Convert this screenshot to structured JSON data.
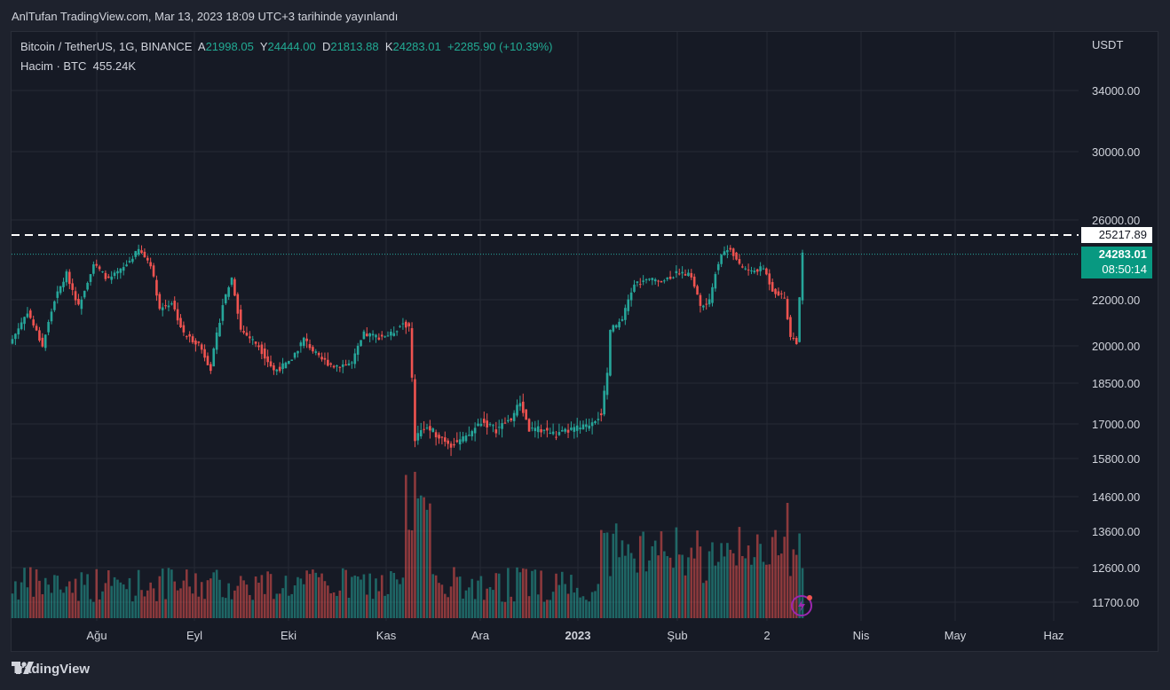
{
  "published": "AnlTufan TradingView.com, Mar 13, 2023 18:09 UTC+3 tarihinde yayınlandı",
  "legend": {
    "symbol": "Bitcoin / TetherUS, 1G, BINANCE",
    "open_label": "A",
    "open": "21998.05",
    "high_label": "Y",
    "high": "24444.00",
    "low_label": "D",
    "low": "21813.88",
    "close_label": "K",
    "close": "24283.01",
    "change": "+2285.90 (+10.39%)",
    "volume_label": "Hacim · BTC",
    "volume": "455.24K"
  },
  "currency": "USDT",
  "price_tags": {
    "level": "25217.89",
    "last": "24283.01",
    "countdown": "08:50:14"
  },
  "logo_text": "TradingView",
  "colors": {
    "up": "#26a69a",
    "down": "#ef5350",
    "bg": "#161a25",
    "grid": "#262a35",
    "level_line": "#ffffff"
  },
  "chart_data": {
    "type": "candlestick",
    "y_ticks": [
      "34000.00",
      "30000.00",
      "26000.00",
      "22000.00",
      "20000.00",
      "18500.00",
      "17000.00",
      "15800.00",
      "14600.00",
      "13600.00",
      "12600.00",
      "11700.00"
    ],
    "x_ticks": [
      "Ağu",
      "Eyl",
      "Eki",
      "Kas",
      "Ara",
      "2023",
      "Şub",
      "2",
      "Nis",
      "May",
      "Haz"
    ],
    "horizontal_level": 25217.89,
    "last_price": 24283.01,
    "close_path": [
      {
        "x": 0,
        "y": 20300
      },
      {
        "x": 5,
        "y": 21500
      },
      {
        "x": 10,
        "y": 20000
      },
      {
        "x": 14,
        "y": 22000
      },
      {
        "x": 18,
        "y": 23300
      },
      {
        "x": 22,
        "y": 21700
      },
      {
        "x": 27,
        "y": 23800
      },
      {
        "x": 32,
        "y": 23000
      },
      {
        "x": 37,
        "y": 23600
      },
      {
        "x": 42,
        "y": 24500
      },
      {
        "x": 46,
        "y": 23800
      },
      {
        "x": 49,
        "y": 21600
      },
      {
        "x": 53,
        "y": 21900
      },
      {
        "x": 57,
        "y": 20500
      },
      {
        "x": 62,
        "y": 20100
      },
      {
        "x": 66,
        "y": 19100
      },
      {
        "x": 70,
        "y": 21800
      },
      {
        "x": 73,
        "y": 23100
      },
      {
        "x": 76,
        "y": 20700
      },
      {
        "x": 82,
        "y": 20000
      },
      {
        "x": 87,
        "y": 19000
      },
      {
        "x": 92,
        "y": 19300
      },
      {
        "x": 97,
        "y": 20300
      },
      {
        "x": 102,
        "y": 19500
      },
      {
        "x": 107,
        "y": 19200
      },
      {
        "x": 113,
        "y": 19300
      },
      {
        "x": 117,
        "y": 20500
      },
      {
        "x": 122,
        "y": 20400
      },
      {
        "x": 126,
        "y": 20500
      },
      {
        "x": 130,
        "y": 21000
      },
      {
        "x": 132,
        "y": 20800
      },
      {
        "x": 133,
        "y": 18700
      },
      {
        "x": 134,
        "y": 16500
      },
      {
        "x": 137,
        "y": 16900
      },
      {
        "x": 142,
        "y": 16600
      },
      {
        "x": 146,
        "y": 16300
      },
      {
        "x": 151,
        "y": 16500
      },
      {
        "x": 156,
        "y": 17100
      },
      {
        "x": 161,
        "y": 16800
      },
      {
        "x": 166,
        "y": 17200
      },
      {
        "x": 169,
        "y": 17800
      },
      {
        "x": 172,
        "y": 16800
      },
      {
        "x": 177,
        "y": 16800
      },
      {
        "x": 181,
        "y": 16600
      },
      {
        "x": 186,
        "y": 16800
      },
      {
        "x": 191,
        "y": 16900
      },
      {
        "x": 196,
        "y": 17400
      },
      {
        "x": 198,
        "y": 18800
      },
      {
        "x": 199,
        "y": 20700
      },
      {
        "x": 203,
        "y": 21100
      },
      {
        "x": 207,
        "y": 22800
      },
      {
        "x": 212,
        "y": 23000
      },
      {
        "x": 217,
        "y": 23000
      },
      {
        "x": 222,
        "y": 23400
      },
      {
        "x": 226,
        "y": 23200
      },
      {
        "x": 229,
        "y": 21700
      },
      {
        "x": 232,
        "y": 21900
      },
      {
        "x": 234,
        "y": 23400
      },
      {
        "x": 236,
        "y": 24300
      },
      {
        "x": 239,
        "y": 24600
      },
      {
        "x": 242,
        "y": 23700
      },
      {
        "x": 246,
        "y": 23400
      },
      {
        "x": 250,
        "y": 23600
      },
      {
        "x": 253,
        "y": 22500
      },
      {
        "x": 257,
        "y": 22100
      },
      {
        "x": 259,
        "y": 20400
      },
      {
        "x": 261,
        "y": 20200
      },
      {
        "x": 262,
        "y": 22000
      },
      {
        "x": 263,
        "y": 24283
      }
    ]
  }
}
